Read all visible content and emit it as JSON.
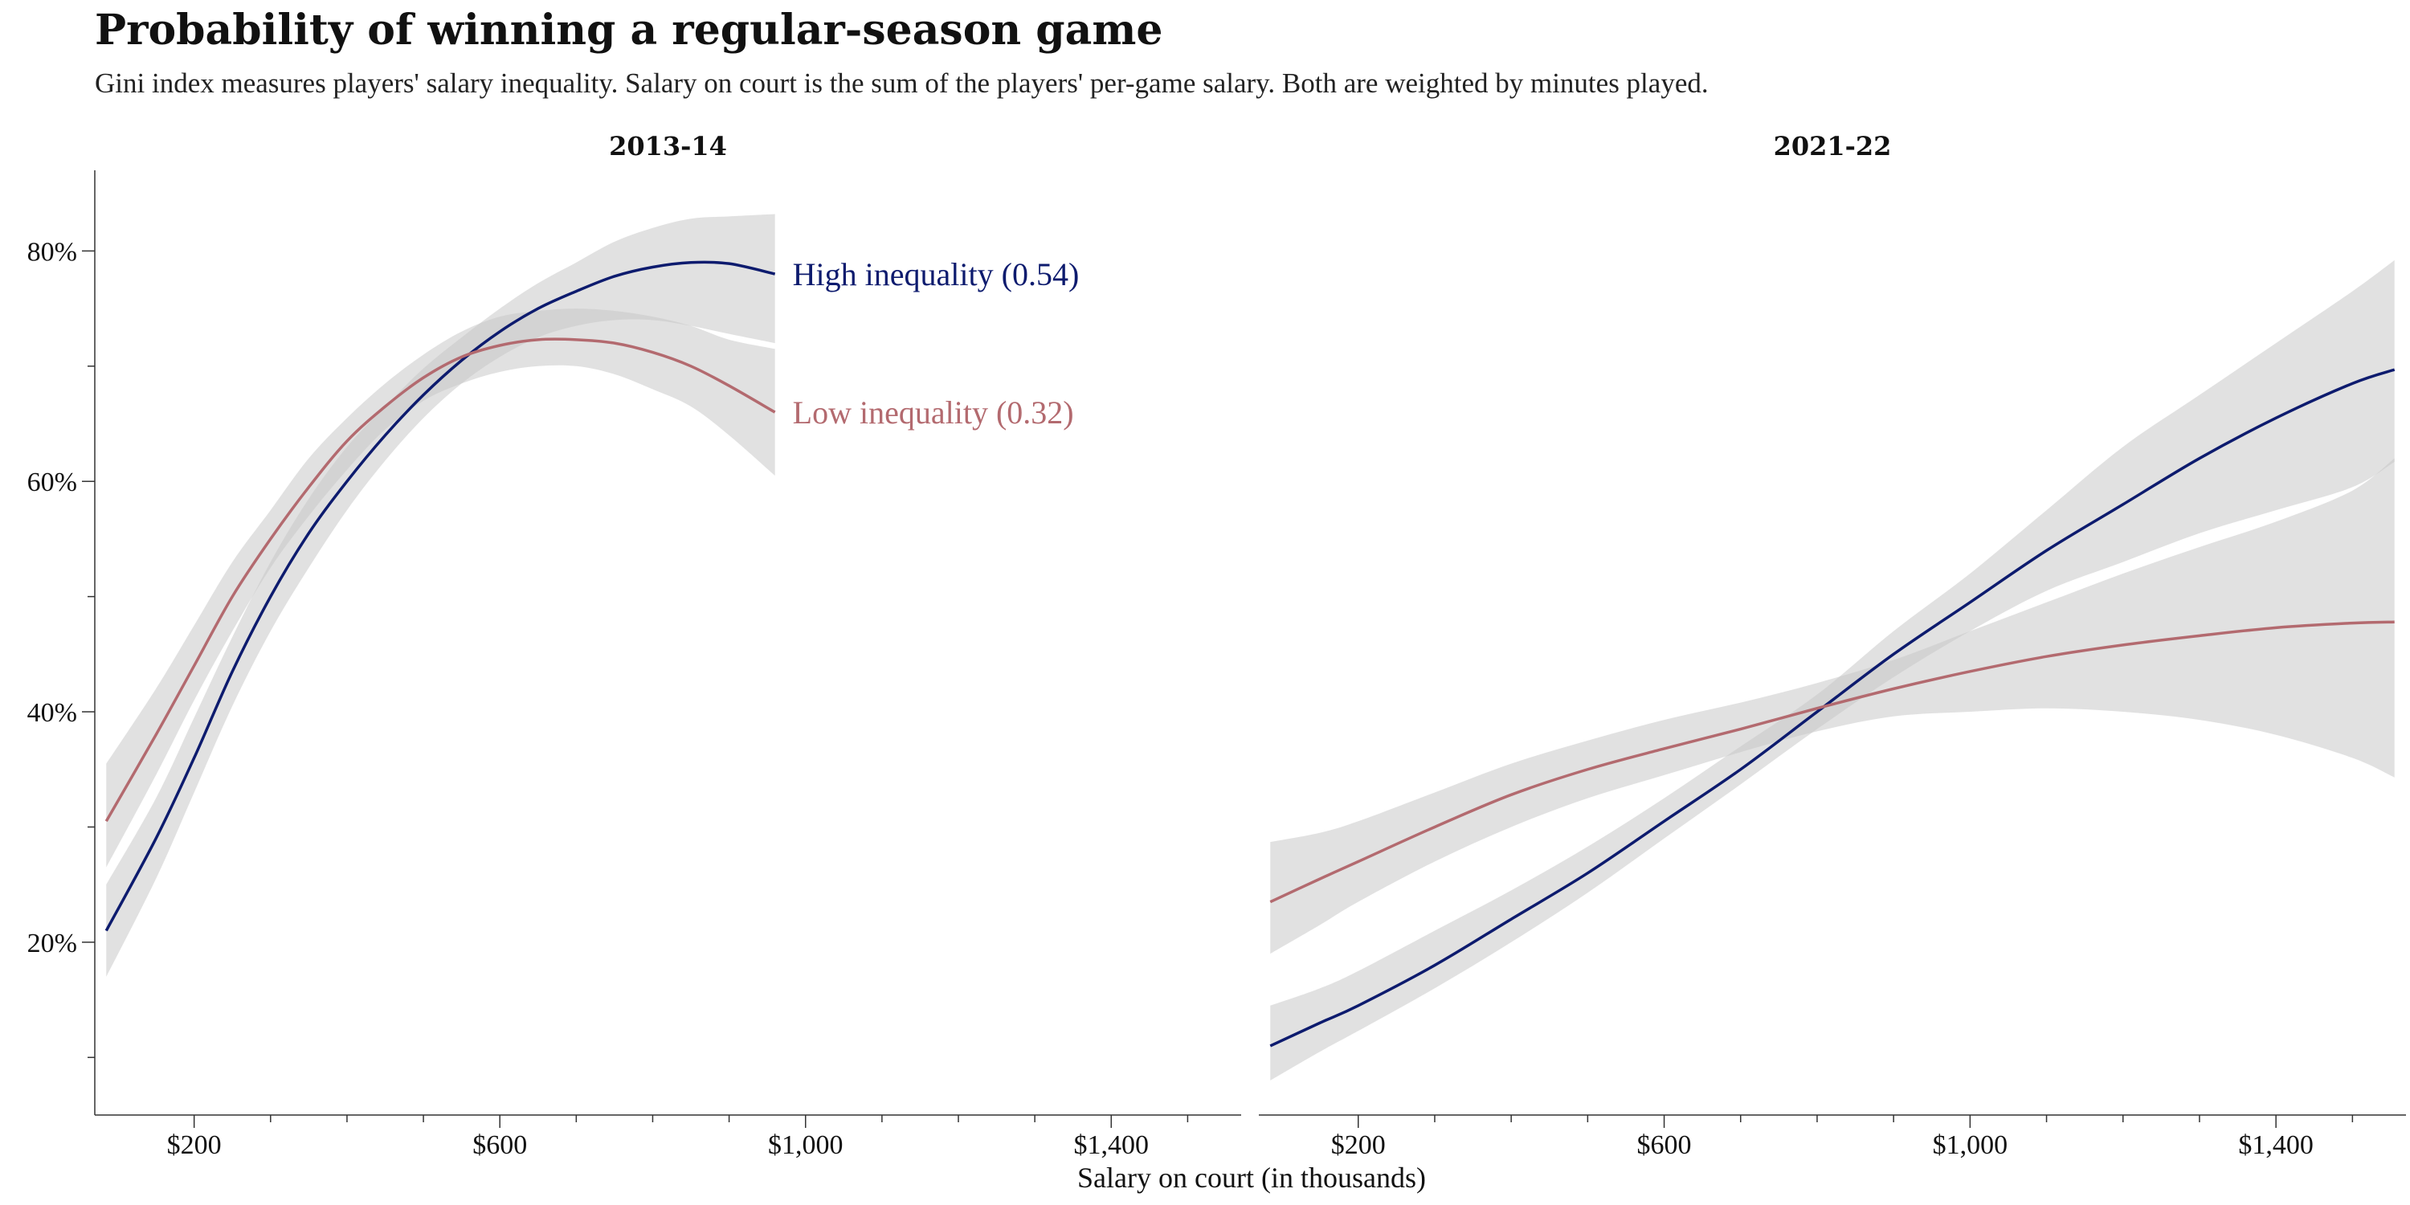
{
  "colors": {
    "high": "#0d1b6e",
    "low": "#b36a6f",
    "band": "#c8c8c8"
  },
  "chart_data": {
    "type": "line",
    "title": "Probability of winning a regular-season game",
    "subtitle": "Gini index measures players' salary inequality. Salary on court is the sum of the players' per-game salary. Both are weighted by minutes played.",
    "xlabel": "Salary on court (in thousands)",
    "ylabel": "",
    "xlim": [
      70,
      1570
    ],
    "ylim": [
      5,
      87
    ],
    "x_ticks": [
      200,
      600,
      1000,
      1400
    ],
    "x_tick_labels": [
      "$200",
      "$600",
      "$1,000",
      "$1,400"
    ],
    "x_minor_ticks": [
      300,
      400,
      500,
      700,
      800,
      900,
      1100,
      1200,
      1300,
      1500
    ],
    "y_ticks": [
      20,
      40,
      60,
      80
    ],
    "y_tick_labels": [
      "20%",
      "40%",
      "60%",
      "80%"
    ],
    "y_minor_ticks": [
      10,
      30,
      50,
      70
    ],
    "grid": false,
    "legend": "direct labels at line ends (first panel)",
    "panels": [
      {
        "title": "2013-14",
        "series": [
          {
            "name": "High inequality (0.54)",
            "color_key": "high",
            "x": [
              85,
              150,
              200,
              250,
              300,
              350,
              400,
              450,
              500,
              550,
              600,
              650,
              700,
              750,
              800,
              850,
              900,
              960
            ],
            "y": [
              21,
              29,
              36,
              43.5,
              50,
              55.5,
              60,
              64,
              67.5,
              70.5,
              73,
              75,
              76.5,
              77.8,
              78.6,
              79,
              78.9,
              78
            ],
            "lower": [
              17,
              25.5,
              33,
              40.5,
              47,
              52.5,
              57.5,
              61.8,
              65.5,
              68.5,
              70.8,
              72.5,
              73.5,
              74,
              74,
              73.5,
              72.8,
              72
            ],
            "upper": [
              25,
              32.5,
              39.5,
              46.5,
              53,
              58.5,
              63,
              66.5,
              69.8,
              72.5,
              75,
              77.2,
              79,
              80.8,
              82,
              82.8,
              83,
              83.2
            ]
          },
          {
            "name": "Low inequality (0.32)",
            "color_key": "low",
            "x": [
              85,
              150,
              200,
              250,
              300,
              350,
              400,
              450,
              500,
              550,
              600,
              650,
              700,
              750,
              800,
              850,
              900,
              960
            ],
            "y": [
              30.5,
              38,
              44,
              50,
              55,
              59.5,
              63.5,
              66.5,
              69,
              70.8,
              71.8,
              72.3,
              72.3,
              72,
              71.2,
              70,
              68.3,
              66
            ],
            "lower": [
              26.5,
              34.5,
              41,
              47,
              52.5,
              57,
              61,
              64.5,
              67,
              68.5,
              69.5,
              70,
              70,
              69.3,
              68,
              66.5,
              64,
              60.5
            ],
            "upper": [
              35.5,
              42,
              47.5,
              53,
              57.5,
              62,
              65.5,
              68.5,
              71,
              73,
              74.3,
              74.8,
              75,
              74.8,
              74.3,
              73.5,
              72.3,
              71.5
            ]
          }
        ],
        "labels": [
          {
            "text": "High inequality (0.54)",
            "color_key": "high",
            "x": 960,
            "y": 78
          },
          {
            "text": "Low inequality (0.32)",
            "color_key": "low",
            "x": 960,
            "y": 66
          }
        ]
      },
      {
        "title": "2021-22",
        "series": [
          {
            "name": "High inequality",
            "color_key": "high",
            "x": [
              85,
              150,
              200,
              300,
              400,
              500,
              600,
              700,
              800,
              900,
              1000,
              1100,
              1200,
              1300,
              1400,
              1500,
              1555
            ],
            "y": [
              11,
              13,
              14.5,
              18,
              22,
              26,
              30.5,
              35,
              40,
              45,
              49.5,
              54,
              58,
              62,
              65.5,
              68.5,
              69.7
            ],
            "lower": [
              8,
              10.5,
              12.3,
              16,
              20,
              24.3,
              29,
              33.7,
              38.5,
              43,
              47,
              50.5,
              53,
              55.5,
              57.5,
              59.5,
              61.7
            ],
            "upper": [
              14.5,
              16,
              17.5,
              21,
              24.5,
              28.3,
              32.5,
              37,
              41.5,
              47,
              52,
              57.5,
              63,
              67.5,
              72,
              76.5,
              79.2
            ]
          },
          {
            "name": "Low inequality",
            "color_key": "low",
            "x": [
              85,
              150,
              200,
              300,
              400,
              500,
              600,
              700,
              800,
              900,
              1000,
              1100,
              1200,
              1300,
              1400,
              1500,
              1555
            ],
            "y": [
              23.5,
              25.5,
              27,
              30,
              32.8,
              35,
              36.8,
              38.5,
              40.3,
              42,
              43.5,
              44.8,
              45.8,
              46.6,
              47.3,
              47.7,
              47.8
            ],
            "lower": [
              19,
              21.5,
              23.5,
              27,
              30,
              32.5,
              34.5,
              36.5,
              38.3,
              39.6,
              40,
              40.3,
              40,
              39.3,
              38,
              36,
              34.3
            ],
            "upper": [
              28.7,
              29.5,
              30.5,
              33,
              35.5,
              37.5,
              39.3,
              40.8,
              42.5,
              44.5,
              47,
              49.5,
              52,
              54.3,
              56.5,
              59.2,
              62
            ]
          }
        ],
        "labels": []
      }
    ]
  }
}
